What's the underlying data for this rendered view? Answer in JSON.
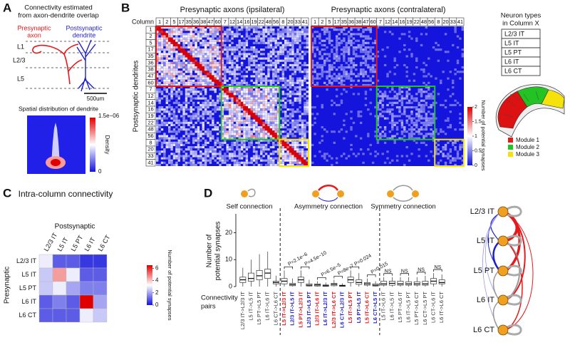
{
  "panels": {
    "A": {
      "letter": "A",
      "title": [
        "Connectivity estimated",
        "from axon-dendrite overlap"
      ],
      "axon_label": [
        "Presynaptic",
        "axon"
      ],
      "dendrite_label": [
        "Postsynaptic",
        "dendrite"
      ],
      "layers": [
        "L1",
        "L2/3",
        "L5"
      ],
      "scale_bar": "500um",
      "density_title": "Spatial distribution of dendrite",
      "density_max": "1.5e−06",
      "density_min": "0",
      "density_label": "Density"
    },
    "B": {
      "letter": "B",
      "title_ipsi": "Presynaptic axons (ipsilateral)",
      "title_contra": "Presynaptic axons (contralateral)",
      "column_label": "Column",
      "columns": [
        1,
        2,
        5,
        17,
        35,
        36,
        38,
        47,
        60,
        7,
        12,
        14,
        16,
        19,
        22,
        48,
        56,
        8,
        20,
        33,
        41
      ],
      "columns_contra": [
        1,
        2,
        5,
        17,
        35,
        36,
        38,
        47,
        60,
        7,
        12,
        14,
        16,
        19,
        22,
        48,
        56,
        8,
        20,
        33,
        41
      ],
      "rows": [
        1,
        2,
        5,
        17,
        35,
        36,
        38,
        47,
        60,
        7,
        12,
        14,
        16,
        19,
        22,
        48,
        56,
        8,
        20,
        33,
        41
      ],
      "row_label": "Postsynaptic dendrites",
      "colorbar_ticks": [
        0,
        0.5,
        1,
        1.5,
        2
      ],
      "clim": [
        0,
        2
      ],
      "colorbar_label": "Number of potential synapses",
      "types_title": [
        "Neuron types",
        "in Column X"
      ],
      "types": [
        "L2/3 IT",
        "L5 IT",
        "L5 PT",
        "L6 IT",
        "L6 CT"
      ],
      "modules": [
        {
          "name": "Module 1",
          "color": "#e41a1c"
        },
        {
          "name": "Module 2",
          "color": "#22c322"
        },
        {
          "name": "Module 3",
          "color": "#f5e20a"
        }
      ]
    },
    "C": {
      "letter": "C",
      "title": "Intra-column connectivity",
      "col_label": "Postsynaptic",
      "row_label": "Presynaptic",
      "types": [
        "L2/3 IT",
        "L5 IT",
        "L5 PT",
        "L6 IT",
        "L6 CT"
      ],
      "matrix": [
        [
          3,
          1,
          1,
          0.5,
          0.5
        ],
        [
          2.5,
          4.5,
          3,
          1,
          1
        ],
        [
          2.5,
          3,
          2,
          1.5,
          1.5
        ],
        [
          1,
          1.5,
          1,
          6.5,
          2
        ],
        [
          1,
          1,
          1,
          3,
          2.5
        ]
      ],
      "clim": [
        0,
        6.5
      ],
      "colorbar_ticks": [
        0,
        2,
        4,
        6
      ],
      "colorbar_label": "Number of potential synapses"
    },
    "D": {
      "letter": "D",
      "headings": [
        "Self connection",
        "Asymmetry connection",
        "Symmetry connection"
      ],
      "ylabel": [
        "Number of",
        "potential synapses"
      ],
      "xlabel": [
        "Connectivity",
        "pairs"
      ],
      "ylim": [
        0,
        27
      ],
      "yticks": [
        0,
        10,
        20
      ],
      "pairs": [
        {
          "label": "L2/3 IT->L2/3 IT",
          "color": "#333333",
          "box": [
            0,
            1.5,
            2.5,
            3.5,
            7
          ]
        },
        {
          "label": "L5 IT->L5 IT",
          "color": "#333333",
          "box": [
            0,
            2,
            3,
            5,
            10
          ]
        },
        {
          "label": "L5 PT->L5 PT",
          "color": "#333333",
          "box": [
            0,
            2.5,
            4,
            6,
            12
          ]
        },
        {
          "label": "L6 IT->L6 IT",
          "color": "#333333",
          "box": [
            0,
            3,
            5,
            6.5,
            13
          ]
        },
        {
          "label": "L6 CT->L6 CT",
          "color": "#333333",
          "box": [
            0,
            1,
            1.5,
            2,
            4
          ]
        },
        {
          "label": "L5 IT->L2/3 IT",
          "color": "#e41a1c",
          "box": [
            0,
            1,
            2,
            3,
            6
          ]
        },
        {
          "label": "L2/3 IT->L5 IT",
          "color": "#1f1fd0",
          "box": [
            0,
            0.3,
            0.7,
            1.2,
            3
          ]
        },
        {
          "label": "L5 PT->L2/3 IT",
          "color": "#e41a1c",
          "box": [
            0,
            1.5,
            2.5,
            3.5,
            6
          ]
        },
        {
          "label": "L2/3 IT->L5 PT",
          "color": "#1f1fd0",
          "box": [
            0,
            0.2,
            0.5,
            1,
            2.5
          ]
        },
        {
          "label": "L2/3 IT->L6 IT",
          "color": "#e41a1c",
          "box": [
            0,
            0.2,
            0.6,
            1,
            2
          ]
        },
        {
          "label": "L6 IT->L2/3 IT",
          "color": "#1f1fd0",
          "box": [
            0,
            0.1,
            0.3,
            0.6,
            1.5
          ]
        },
        {
          "label": "L2/3 IT->L6 CT",
          "color": "#e41a1c",
          "box": [
            0,
            0.3,
            0.8,
            1.2,
            2.5
          ]
        },
        {
          "label": "L6 CT->L2/3 IT",
          "color": "#1f1fd0",
          "box": [
            0,
            0.1,
            0.3,
            0.5,
            1.2
          ]
        },
        {
          "label": "L5 IT->L5 PT",
          "color": "#e41a1c",
          "box": [
            0,
            1.5,
            2.5,
            3.5,
            6
          ]
        },
        {
          "label": "L5 PT->L5 IT",
          "color": "#1f1fd0",
          "box": [
            0,
            0.8,
            1.5,
            2.5,
            5
          ]
        },
        {
          "label": "L5 IT->L6 CT",
          "color": "#e41a1c",
          "box": [
            0,
            0.5,
            1,
            1.5,
            3
          ]
        },
        {
          "label": "L6 CT->L5 IT",
          "color": "#1f1fd0",
          "box": [
            0,
            0.2,
            0.5,
            1,
            2
          ]
        },
        {
          "label": "L5 IT->L6 IT",
          "color": "#333333",
          "box": [
            0,
            0.5,
            1,
            2,
            3.5
          ]
        },
        {
          "label": "L6 IT->L5 IT",
          "color": "#333333",
          "box": [
            0,
            0.5,
            1.2,
            2,
            3.5
          ]
        },
        {
          "label": "L5 PT->L6 IT",
          "color": "#333333",
          "box": [
            0,
            0.5,
            1,
            2,
            3.5
          ]
        },
        {
          "label": "L6 IT->L5 PT",
          "color": "#333333",
          "box": [
            0,
            0.5,
            1,
            1.8,
            3.5
          ]
        },
        {
          "label": "L5 PT->L6 CT",
          "color": "#333333",
          "box": [
            0,
            0.5,
            1,
            1.8,
            3.5
          ]
        },
        {
          "label": "L6 CT->L5 PT",
          "color": "#333333",
          "box": [
            0,
            0.5,
            1,
            2,
            4
          ]
        },
        {
          "label": "L6 CT->L6 IT",
          "color": "#333333",
          "box": [
            0,
            1,
            2,
            3,
            5
          ]
        },
        {
          "label": "L6 IT->L6 CT",
          "color": "#333333",
          "box": [
            0,
            1,
            1.5,
            2.5,
            4.5
          ]
        }
      ],
      "pvalues": [
        "P=2.1e−6",
        "P=4.5e−10",
        "P=6.5e−5",
        "P=8e−7",
        "P=0.024",
        "P=0.015",
        "NS",
        "NS",
        "NS",
        "NS"
      ],
      "diagram_nodes": [
        "L2/3 IT",
        "L5 IT",
        "L5 PT",
        "L6 IT",
        "L6 CT"
      ]
    }
  }
}
